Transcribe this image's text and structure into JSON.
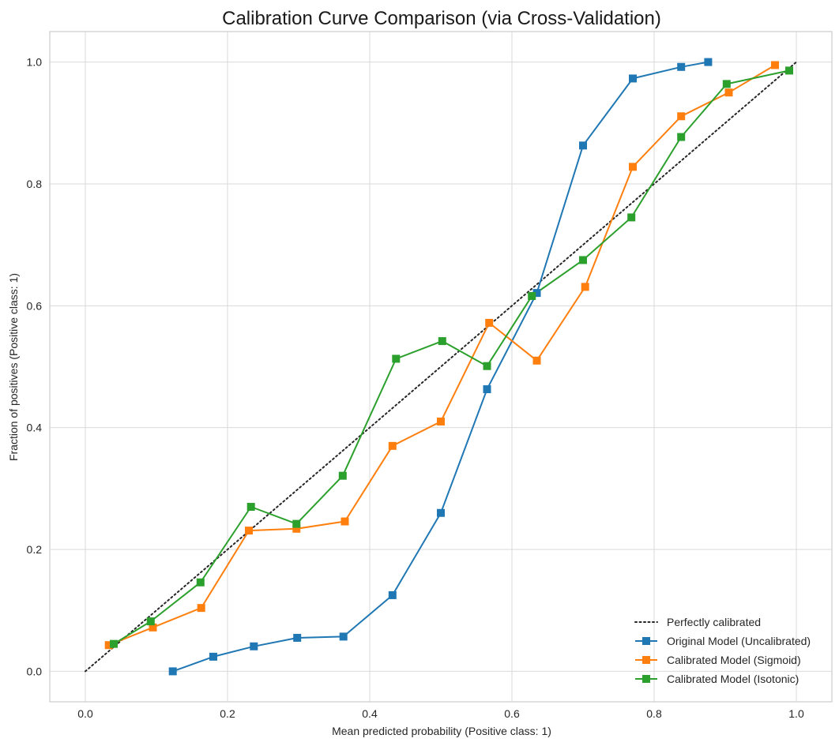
{
  "chart_data": {
    "type": "line",
    "title": "Calibration Curve Comparison (via Cross-Validation)",
    "xlabel": "Mean predicted probability (Positive class: 1)",
    "ylabel": "Fraction of positives (Positive class: 1)",
    "xlim": [
      -0.05,
      1.05
    ],
    "ylim": [
      -0.05,
      1.05
    ],
    "xticks": [
      "0.0",
      "0.2",
      "0.4",
      "0.6",
      "0.8",
      "1.0"
    ],
    "yticks": [
      "0.0",
      "0.2",
      "0.4",
      "0.6",
      "0.8",
      "1.0"
    ],
    "grid": true,
    "legend_position": "bottom-right",
    "reference": {
      "name": "Perfectly calibrated",
      "color": "#262626",
      "style": "dotted",
      "x": [
        0.0,
        1.0
      ],
      "y": [
        0.0,
        1.0
      ]
    },
    "series": [
      {
        "name": "Original Model (Uncalibrated)",
        "color": "#1f77b4",
        "marker": "square",
        "x": [
          0.123,
          0.18,
          0.237,
          0.298,
          0.363,
          0.432,
          0.5,
          0.565,
          0.635,
          0.7,
          0.77,
          0.838,
          0.876
        ],
        "y": [
          0.0,
          0.024,
          0.041,
          0.055,
          0.057,
          0.125,
          0.26,
          0.463,
          0.621,
          0.863,
          0.973,
          0.992,
          1.0
        ]
      },
      {
        "name": "Calibrated Model (Sigmoid)",
        "color": "#ff7f0e",
        "marker": "square",
        "x": [
          0.033,
          0.095,
          0.163,
          0.23,
          0.297,
          0.365,
          0.432,
          0.5,
          0.568,
          0.635,
          0.703,
          0.77,
          0.838,
          0.905,
          0.97
        ],
        "y": [
          0.043,
          0.072,
          0.104,
          0.231,
          0.234,
          0.246,
          0.37,
          0.41,
          0.572,
          0.51,
          0.631,
          0.828,
          0.911,
          0.95,
          0.995
        ]
      },
      {
        "name": "Calibrated Model (Isotonic)",
        "color": "#2ca02c",
        "marker": "square",
        "x": [
          0.04,
          0.092,
          0.162,
          0.233,
          0.297,
          0.362,
          0.437,
          0.502,
          0.565,
          0.628,
          0.7,
          0.768,
          0.838,
          0.902,
          0.99
        ],
        "y": [
          0.045,
          0.082,
          0.146,
          0.27,
          0.242,
          0.321,
          0.513,
          0.542,
          0.501,
          0.616,
          0.675,
          0.745,
          0.877,
          0.964,
          0.986
        ]
      }
    ]
  }
}
